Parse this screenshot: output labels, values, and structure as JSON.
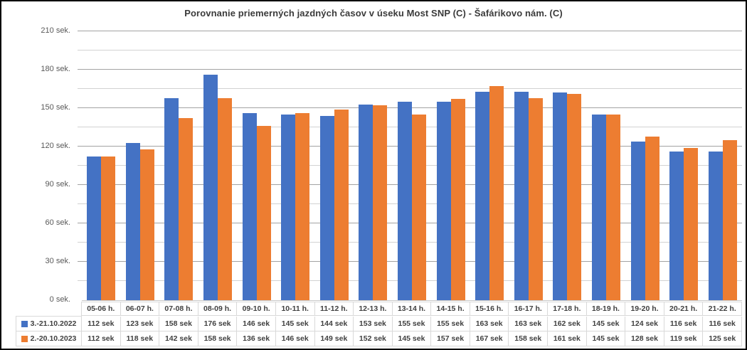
{
  "chart_data": {
    "type": "bar",
    "title": "Porovnanie priemerných jazdných časov v úseku Most SNP (C) - Šafárikovo nám. (C)",
    "categories": [
      "05-06 h.",
      "06-07 h.",
      "07-08 h.",
      "08-09 h.",
      "09-10 h.",
      "10-11 h.",
      "11-12 h.",
      "12-13 h.",
      "13-14 h.",
      "14-15 h.",
      "15-16 h.",
      "16-17 h.",
      "17-18 h.",
      "18-19 h.",
      "19-20 h.",
      "20-21 h.",
      "21-22 h."
    ],
    "series": [
      {
        "name": "3.-21.10.2022",
        "color": "#4472C4",
        "values": [
          112,
          123,
          158,
          176,
          146,
          145,
          144,
          153,
          155,
          155,
          163,
          163,
          162,
          145,
          124,
          116,
          116
        ]
      },
      {
        "name": "2.-20.10.2023",
        "color": "#ED7D31",
        "values": [
          112,
          118,
          142,
          158,
          136,
          146,
          149,
          152,
          145,
          157,
          167,
          158,
          161,
          145,
          128,
          119,
          125
        ]
      }
    ],
    "ylim": [
      0,
      210
    ],
    "y_tick_values": [
      0,
      30,
      60,
      90,
      120,
      150,
      180,
      210
    ],
    "y_tick_labels": [
      "0 sek.",
      "30 sek.",
      "60 sek.",
      "90 sek.",
      "120 sek.",
      "150 sek.",
      "180 sek.",
      "210 sek."
    ],
    "minor_grid_step": 15,
    "major_grid_step": 30,
    "grid": "horizontal",
    "legend_position": "data-table-left",
    "value_suffix": " sek",
    "colors": {
      "series_2022": "#4472C4",
      "series_2023": "#ED7D31"
    }
  }
}
